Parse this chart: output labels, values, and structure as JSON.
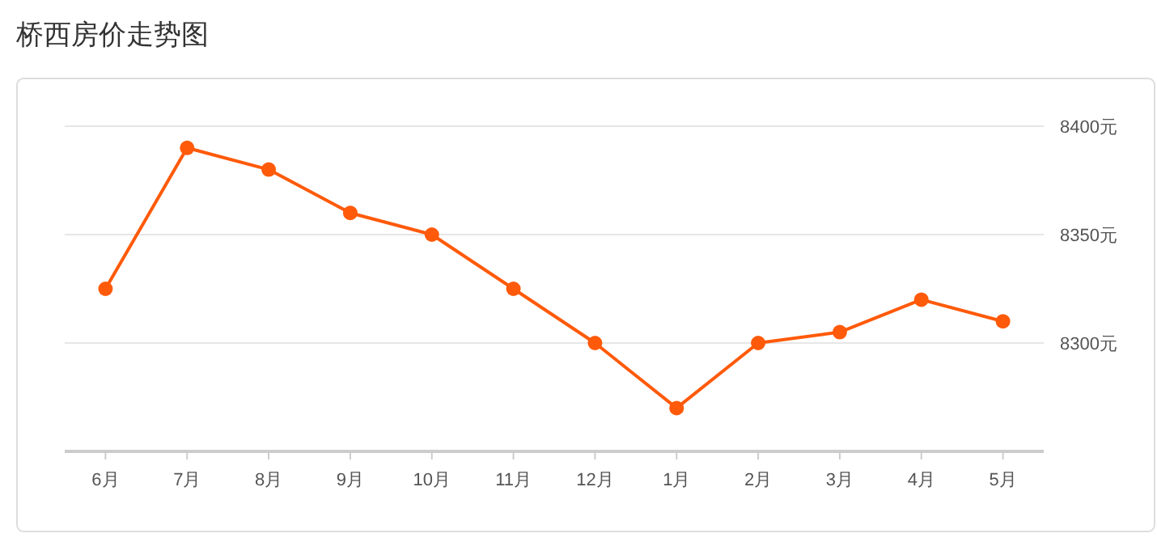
{
  "chart_data": {
    "type": "line",
    "title": "桥西房价走势图",
    "categories": [
      "6月",
      "7月",
      "8月",
      "9月",
      "10月",
      "11月",
      "12月",
      "1月",
      "2月",
      "3月",
      "4月",
      "5月"
    ],
    "series": [
      {
        "color": "#ff5a0a",
        "values": [
          8325,
          8390,
          8380,
          8360,
          8350,
          8325,
          8300,
          8270,
          8300,
          8305,
          8320,
          8310
        ]
      }
    ],
    "ylim": [
      8250,
      8400
    ],
    "yticks": [
      {
        "value": 8300,
        "label": "8300元"
      },
      {
        "value": 8350,
        "label": "8350元"
      },
      {
        "value": 8400,
        "label": "8400元"
      }
    ],
    "grid": "y",
    "marker": "circle",
    "line_style": "solid"
  }
}
